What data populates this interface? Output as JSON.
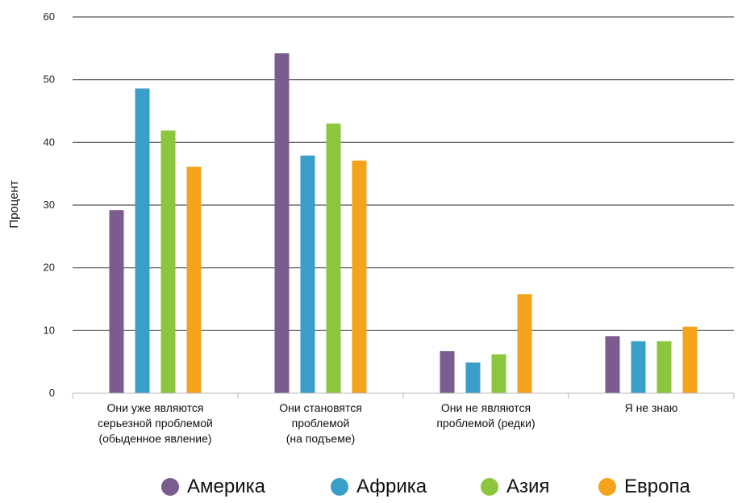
{
  "chart_data": {
    "type": "bar",
    "title": "",
    "xlabel": "",
    "ylabel": "Процент",
    "ylim": [
      0,
      60
    ],
    "yticks": [
      0,
      10,
      20,
      30,
      40,
      50,
      60
    ],
    "grid": true,
    "legend_position": "bottom",
    "categories": [
      [
        "Они уже являются",
        "серьезной проблемой",
        "(обыденное явление)"
      ],
      [
        "Они становятся",
        "проблемой",
        "(на подъеме)"
      ],
      [
        "Они не являются",
        "проблемой (редки)"
      ],
      [
        "Я не знаю"
      ]
    ],
    "series": [
      {
        "name": "Америка",
        "color": "#7a5c8e",
        "values": [
          29.2,
          54.2,
          6.7,
          9.1
        ]
      },
      {
        "name": "Африка",
        "color": "#3a9fc8",
        "values": [
          48.6,
          37.9,
          4.9,
          8.3
        ]
      },
      {
        "name": "Азия",
        "color": "#8cc63f",
        "values": [
          41.9,
          43.0,
          6.2,
          8.3
        ]
      },
      {
        "name": "Европа",
        "color": "#f5a31a",
        "values": [
          36.1,
          37.1,
          15.8,
          10.6
        ]
      }
    ]
  }
}
